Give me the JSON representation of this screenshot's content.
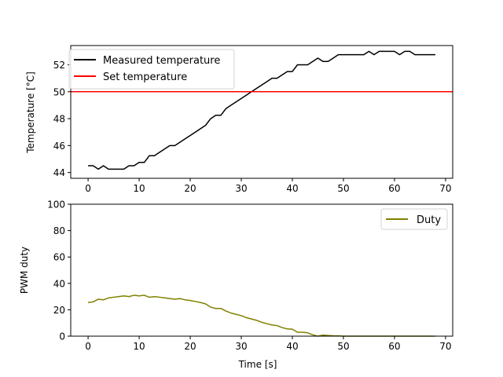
{
  "colors": {
    "measured": "#000000",
    "setpoint": "#ff0000",
    "duty": "#808000",
    "axes": "#000000",
    "background": "#ffffff"
  },
  "chart_data": [
    {
      "type": "line",
      "xlabel": "",
      "ylabel": "Temperature [°C]",
      "xlim": [
        -3.4,
        71.4
      ],
      "ylim": [
        43.57,
        53.43
      ],
      "xticks": [
        0,
        10,
        20,
        30,
        40,
        50,
        60,
        70
      ],
      "xtick_labels": [
        "0",
        "10",
        "20",
        "30",
        "40",
        "50",
        "60",
        "70"
      ],
      "yticks": [
        44,
        46,
        48,
        50,
        52
      ],
      "ytick_labels": [
        "44",
        "46",
        "48",
        "50",
        "52"
      ],
      "grid": false,
      "legend_position": "top-left",
      "series": [
        {
          "name": "Measured temperature",
          "color": "#000000",
          "x": [
            0,
            1,
            2,
            3,
            4,
            5,
            6,
            7,
            8,
            9,
            10,
            11,
            12,
            13,
            14,
            15,
            16,
            17,
            18,
            19,
            20,
            21,
            22,
            23,
            24,
            25,
            26,
            27,
            28,
            29,
            30,
            31,
            32,
            33,
            34,
            35,
            36,
            37,
            38,
            39,
            40,
            41,
            42,
            43,
            44,
            45,
            46,
            47,
            48,
            49,
            50,
            51,
            52,
            53,
            54,
            55,
            56,
            57,
            58,
            59,
            60,
            61,
            62,
            63,
            64,
            65,
            66,
            67,
            68
          ],
          "y": [
            44.5,
            44.5,
            44.25,
            44.5,
            44.25,
            44.25,
            44.25,
            44.25,
            44.5,
            44.5,
            44.75,
            44.75,
            45.25,
            45.25,
            45.5,
            45.75,
            46.0,
            46.0,
            46.25,
            46.5,
            46.75,
            47.0,
            47.25,
            47.5,
            48.0,
            48.25,
            48.25,
            48.75,
            49.0,
            49.25,
            49.5,
            49.75,
            50.0,
            50.25,
            50.5,
            50.75,
            51.0,
            51.0,
            51.25,
            51.5,
            51.5,
            52.0,
            52.0,
            52.0,
            52.25,
            52.5,
            52.25,
            52.25,
            52.5,
            52.75,
            52.75,
            52.75,
            52.75,
            52.75,
            52.75,
            53.0,
            52.75,
            53.0,
            53.0,
            53.0,
            53.0,
            52.75,
            53.0,
            53.0,
            52.75,
            52.75,
            52.75,
            52.75,
            52.75
          ]
        },
        {
          "name": "Set temperature",
          "color": "#ff0000",
          "type": "hline",
          "y": 50
        }
      ]
    },
    {
      "type": "line",
      "xlabel": "Time [s]",
      "ylabel": "PWM duty",
      "xlim": [
        -3.4,
        71.4
      ],
      "ylim": [
        0,
        100
      ],
      "xticks": [
        0,
        10,
        20,
        30,
        40,
        50,
        60,
        70
      ],
      "xtick_labels": [
        "0",
        "10",
        "20",
        "30",
        "40",
        "50",
        "60",
        "70"
      ],
      "yticks": [
        0,
        20,
        40,
        60,
        80,
        100
      ],
      "ytick_labels": [
        "0",
        "20",
        "40",
        "60",
        "80",
        "100"
      ],
      "grid": false,
      "legend_position": "top-right",
      "series": [
        {
          "name": "Duty",
          "color": "#808000",
          "x": [
            0,
            1,
            2,
            3,
            4,
            5,
            6,
            7,
            8,
            9,
            10,
            11,
            12,
            13,
            14,
            15,
            16,
            17,
            18,
            19,
            20,
            21,
            22,
            23,
            24,
            25,
            26,
            27,
            28,
            29,
            30,
            31,
            32,
            33,
            34,
            35,
            36,
            37,
            38,
            39,
            40,
            41,
            42,
            43,
            44,
            45,
            46,
            47,
            48,
            49,
            50,
            51,
            52,
            53,
            54,
            55,
            56,
            57,
            58,
            59,
            60,
            61,
            62,
            63,
            64,
            65,
            66,
            67,
            68
          ],
          "y": [
            25.5,
            26,
            28,
            27.5,
            29,
            29.5,
            30,
            30.5,
            30,
            31,
            30.5,
            31,
            29.5,
            30,
            29.5,
            29,
            28.5,
            28,
            28.5,
            27.5,
            27,
            26.3,
            25.5,
            24.5,
            22,
            21,
            21,
            19,
            17.5,
            16.5,
            15.5,
            14,
            13,
            12,
            10.5,
            9.5,
            8.5,
            8,
            6.5,
            5.5,
            5.3,
            3,
            3,
            2.5,
            1,
            0,
            0.8,
            0.5,
            0.3,
            0.2,
            0,
            0,
            0,
            0,
            0,
            0,
            0,
            0,
            0,
            0,
            0,
            0,
            0,
            0,
            0,
            0,
            0,
            0,
            0
          ]
        }
      ]
    }
  ]
}
